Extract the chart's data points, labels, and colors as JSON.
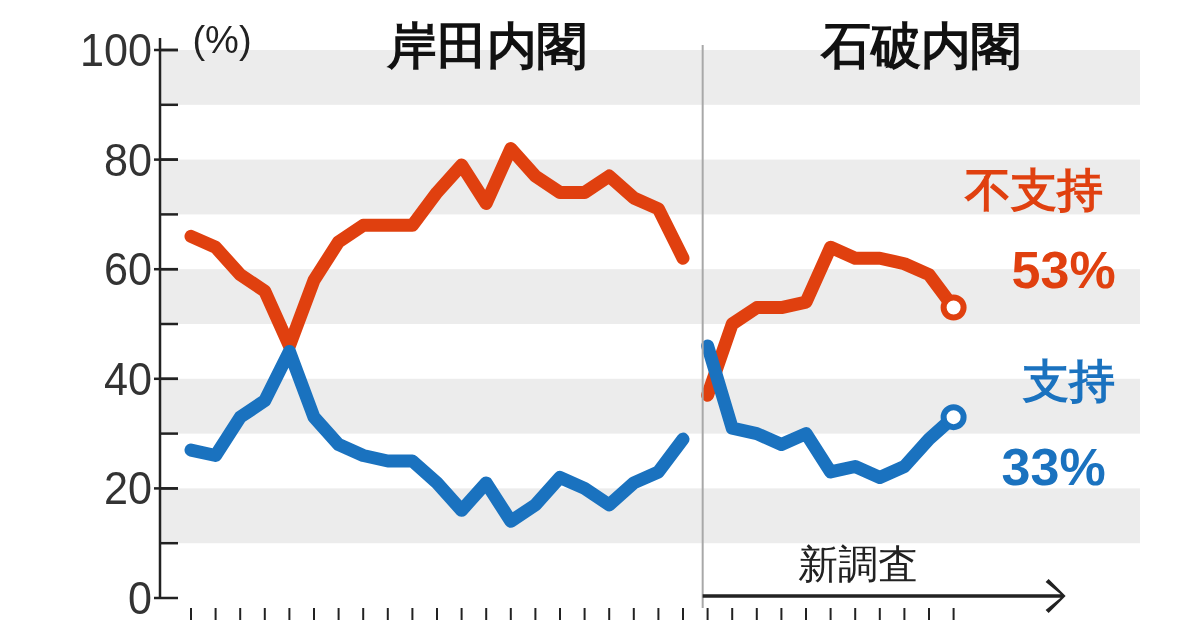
{
  "chart_data": {
    "type": "line",
    "ylim": [
      0,
      100
    ],
    "yticks": [
      0,
      20,
      40,
      60,
      80,
      100
    ],
    "categories": [
      null,
      null,
      null,
      null,
      null,
      null,
      null,
      null,
      null,
      null,
      null,
      null,
      null,
      null,
      null,
      null,
      null,
      null,
      null,
      null,
      null,
      null,
      null,
      null,
      null,
      null,
      null,
      null,
      null,
      null,
      null,
      null
    ],
    "tick_labels": "y",
    "line_style": "solid",
    "bands": [
      {
        "axis": "y",
        "from": 10,
        "to": 20,
        "color": "#ececec"
      },
      {
        "axis": "y",
        "from": 30,
        "to": 40,
        "color": "#ececec"
      },
      {
        "axis": "y",
        "from": 50,
        "to": 60,
        "color": "#ececec"
      },
      {
        "axis": "y",
        "from": 70,
        "to": 80,
        "color": "#ececec"
      },
      {
        "axis": "y",
        "from": 90,
        "to": 100,
        "color": "#ececec"
      }
    ],
    "annotations": [
      "(%)",
      "岸田内閣",
      "石破内閣",
      "新調査"
    ],
    "series": [
      {
        "color": "#e0400f",
        "values": [
          66,
          64,
          59,
          56,
          46,
          58,
          65,
          68,
          68,
          68,
          74,
          79,
          72,
          82,
          77,
          74,
          74,
          77,
          73,
          71,
          62,
          null,
          null,
          null,
          null,
          null,
          null,
          null,
          null,
          null,
          null,
          null
        ]
      },
      {
        "color": "#1a72bf",
        "values": [
          27,
          26,
          33,
          36,
          45,
          33,
          28,
          26,
          25,
          25,
          21,
          16,
          21,
          14,
          17,
          22,
          20,
          17,
          21,
          23,
          29,
          null,
          null,
          null,
          null,
          null,
          null,
          null,
          null,
          null,
          null,
          null
        ]
      },
      {
        "name": "不支持",
        "color": "#e0400f",
        "values": [
          null,
          null,
          null,
          null,
          null,
          null,
          null,
          null,
          null,
          null,
          null,
          null,
          null,
          null,
          null,
          null,
          null,
          null,
          null,
          null,
          null,
          37,
          50,
          53,
          53,
          54,
          64,
          62,
          62,
          61,
          59,
          53
        ],
        "value_labels": [
          null,
          null,
          null,
          null,
          null,
          null,
          null,
          null,
          null,
          null,
          null,
          null,
          null,
          null,
          null,
          null,
          null,
          null,
          null,
          null,
          null,
          null,
          null,
          null,
          null,
          null,
          null,
          null,
          null,
          null,
          null,
          "53%"
        ]
      },
      {
        "name": "支持",
        "color": "#1a72bf",
        "values": [
          null,
          null,
          null,
          null,
          null,
          null,
          null,
          null,
          null,
          null,
          null,
          null,
          null,
          null,
          null,
          null,
          null,
          null,
          null,
          null,
          null,
          46,
          31,
          30,
          28,
          30,
          23,
          24,
          22,
          24,
          29,
          33
        ],
        "value_labels": [
          null,
          null,
          null,
          null,
          null,
          null,
          null,
          null,
          null,
          null,
          null,
          null,
          null,
          null,
          null,
          null,
          null,
          null,
          null,
          null,
          null,
          null,
          null,
          null,
          null,
          null,
          null,
          null,
          null,
          null,
          null,
          "33%"
        ]
      },
      {
        "type": "scatter",
        "marker": "circle",
        "color": "#e0400f",
        "values": [
          null,
          null,
          null,
          null,
          null,
          null,
          null,
          null,
          null,
          null,
          null,
          null,
          null,
          null,
          null,
          null,
          null,
          null,
          null,
          null,
          null,
          null,
          null,
          null,
          null,
          null,
          null,
          null,
          null,
          null,
          null,
          53
        ]
      },
      {
        "type": "scatter",
        "marker": "circle",
        "color": "#1a72bf",
        "values": [
          null,
          null,
          null,
          null,
          null,
          null,
          null,
          null,
          null,
          null,
          null,
          null,
          null,
          null,
          null,
          null,
          null,
          null,
          null,
          null,
          null,
          null,
          null,
          null,
          null,
          null,
          null,
          null,
          null,
          null,
          null,
          33
        ]
      }
    ]
  }
}
